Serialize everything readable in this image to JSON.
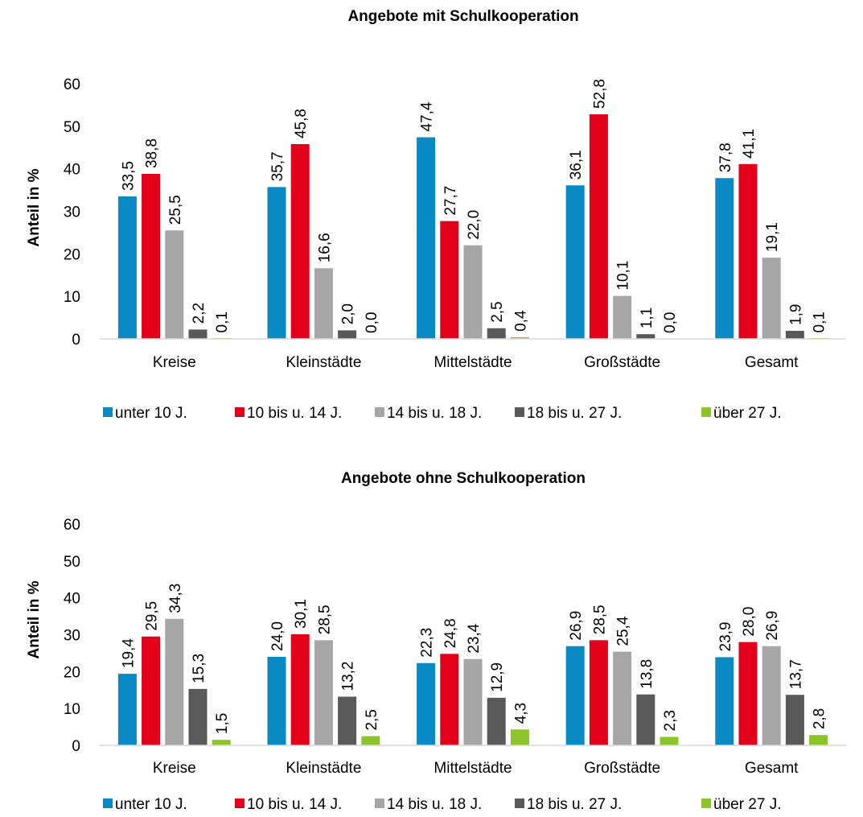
{
  "chart_data": [
    {
      "type": "bar",
      "title": "Angebote mit Schulkooperation",
      "ylabel": "Anteil in %",
      "xlabel": "",
      "ylim": [
        0,
        60
      ],
      "yticks": [
        "0",
        "10",
        "20",
        "30",
        "40",
        "50",
        "60"
      ],
      "grid": false,
      "legend_position": "bottom",
      "categories": [
        "Kreise",
        "Kleinstädte",
        "Mittelstädte",
        "Großstädte",
        "Gesamt"
      ],
      "series": [
        {
          "name": "unter 10 J.",
          "color": "#0a8ac4",
          "values": [
            33.5,
            35.7,
            47.4,
            36.1,
            37.8
          ],
          "labels": [
            "33,5",
            "35,7",
            "47,4",
            "36,1",
            "37,8"
          ]
        },
        {
          "name": "10 bis u. 14 J.",
          "color": "#e2001a",
          "values": [
            38.8,
            45.8,
            27.7,
            52.8,
            41.1
          ],
          "labels": [
            "38,8",
            "45,8",
            "27,7",
            "52,8",
            "41,1"
          ]
        },
        {
          "name": "14 bis u. 18 J.",
          "color": "#a6a6a6",
          "values": [
            25.5,
            16.6,
            22.0,
            10.1,
            19.1
          ],
          "labels": [
            "25,5",
            "16,6",
            "22,0",
            "10,1",
            "19,1"
          ]
        },
        {
          "name": "18 bis u. 27 J.",
          "color": "#595959",
          "values": [
            2.2,
            2.0,
            2.5,
            1.1,
            1.9
          ],
          "labels": [
            "2,2",
            "2,0",
            "2,5",
            "1,1",
            "1,9"
          ]
        },
        {
          "name": "über 27 J.",
          "color": "#8cc42c",
          "values": [
            0.1,
            0.0,
            0.4,
            0.0,
            0.1
          ],
          "labels": [
            "0,1",
            "0,0",
            "0,4",
            "0,0",
            "0,1"
          ]
        }
      ]
    },
    {
      "type": "bar",
      "title": "Angebote ohne Schulkooperation",
      "ylabel": "Anteil in %",
      "xlabel": "",
      "ylim": [
        0,
        60
      ],
      "yticks": [
        "0",
        "10",
        "20",
        "30",
        "40",
        "50",
        "60"
      ],
      "grid": false,
      "legend_position": "bottom",
      "categories": [
        "Kreise",
        "Kleinstädte",
        "Mittelstädte",
        "Großstädte",
        "Gesamt"
      ],
      "series": [
        {
          "name": "unter 10 J.",
          "color": "#0a8ac4",
          "values": [
            19.4,
            24.0,
            22.3,
            26.9,
            23.9
          ],
          "labels": [
            "19,4",
            "24,0",
            "22,3",
            "26,9",
            "23,9"
          ]
        },
        {
          "name": "10 bis u. 14 J.",
          "color": "#e2001a",
          "values": [
            29.5,
            30.1,
            24.8,
            28.5,
            28.0
          ],
          "labels": [
            "29,5",
            "30,1",
            "24,8",
            "28,5",
            "28,0"
          ]
        },
        {
          "name": "14 bis u. 18 J.",
          "color": "#a6a6a6",
          "values": [
            34.3,
            28.5,
            23.4,
            25.4,
            26.9
          ],
          "labels": [
            "34,3",
            "28,5",
            "23,4",
            "25,4",
            "26,9"
          ]
        },
        {
          "name": "18 bis u. 27 J.",
          "color": "#595959",
          "values": [
            15.3,
            13.2,
            12.9,
            13.8,
            13.7
          ],
          "labels": [
            "15,3",
            "13,2",
            "12,9",
            "13,8",
            "13,7"
          ]
        },
        {
          "name": "über 27 J.",
          "color": "#8cc42c",
          "values": [
            1.5,
            2.5,
            4.3,
            2.3,
            2.8
          ],
          "labels": [
            "1,5",
            "2,5",
            "4,3",
            "2,3",
            "2,8"
          ]
        }
      ]
    }
  ]
}
